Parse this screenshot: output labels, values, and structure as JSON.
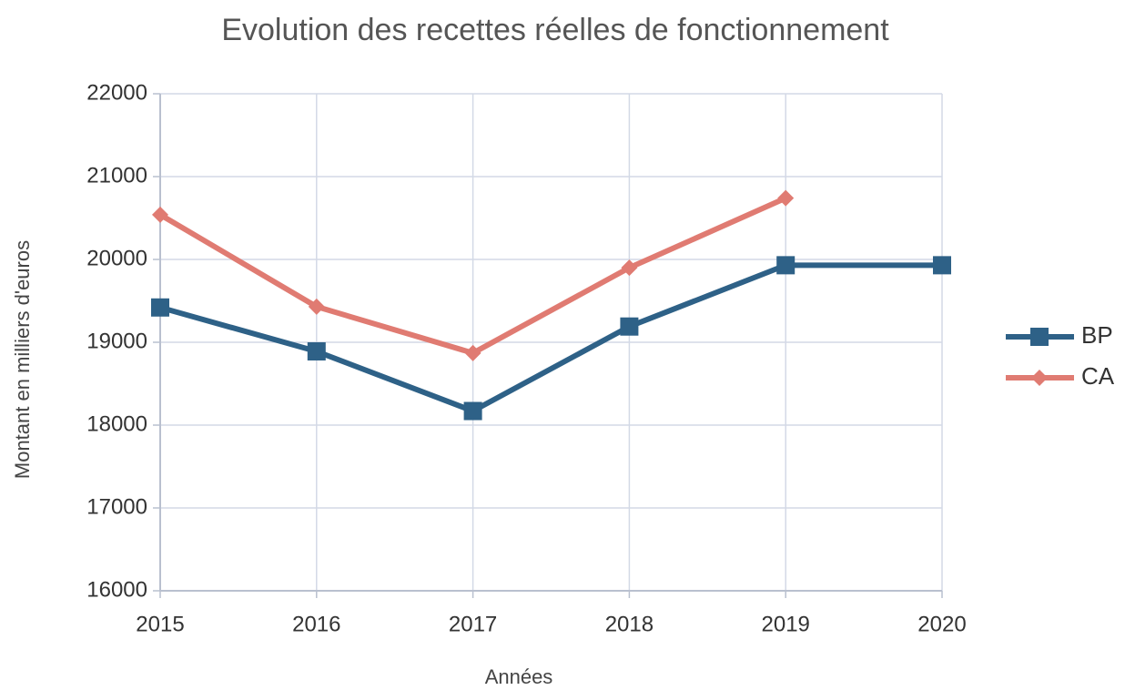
{
  "chart_data": {
    "type": "line",
    "title": "Evolution des recettes réelles de fonctionnement",
    "x_label": "Années",
    "y_label": "Montant en milliers d'euros",
    "x": [
      2015,
      2016,
      2017,
      2018,
      2019,
      2020
    ],
    "series": [
      {
        "name": "BP",
        "color": "#2e6187",
        "marker": "square",
        "values": [
          19420,
          18890,
          18170,
          19190,
          19930,
          19930
        ]
      },
      {
        "name": "CA",
        "color": "#e07b72",
        "marker": "diamond",
        "values": [
          20540,
          19430,
          18870,
          19900,
          20740,
          null
        ]
      }
    ],
    "xlim": [
      2015,
      2020
    ],
    "xticks": [
      2015,
      2016,
      2017,
      2018,
      2019,
      2020
    ],
    "ylim": [
      16000,
      22000
    ],
    "yticks": [
      16000,
      17000,
      18000,
      19000,
      20000,
      21000,
      22000
    ],
    "grid": true,
    "legend": "right"
  }
}
